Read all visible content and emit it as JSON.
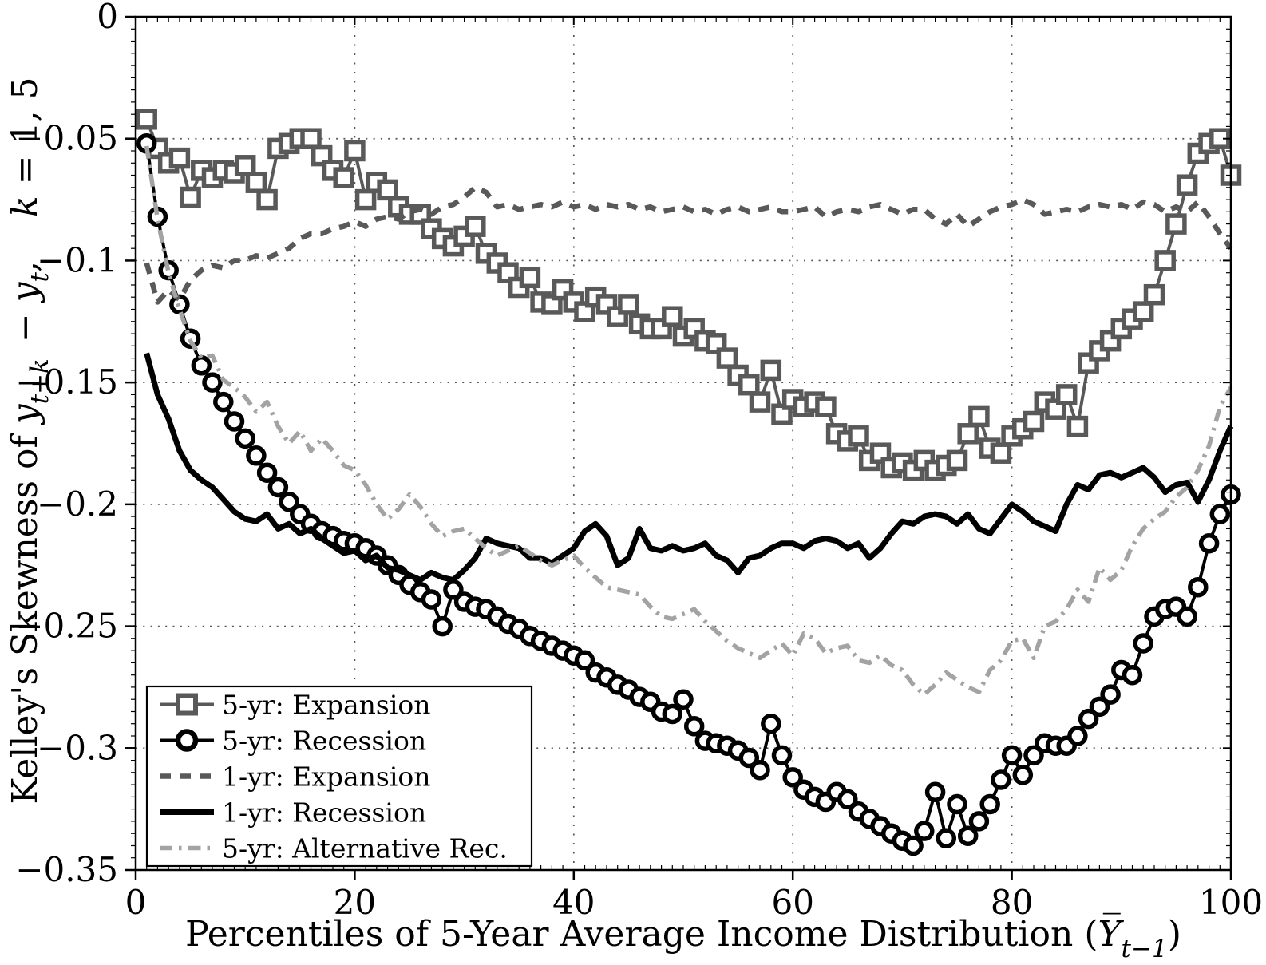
{
  "figure": {
    "background": "#ffffff",
    "axis_color": "#000000",
    "grid_color": "#555555"
  },
  "chart_data": {
    "type": "line",
    "title": "",
    "xlabel_parts": [
      {
        "t": "Percentiles of 5-Year Average Income Distribution ("
      },
      {
        "t": "Y̅",
        "italic": true
      },
      {
        "t": "t−1",
        "italic": true,
        "sub": true
      },
      {
        "t": ")"
      }
    ],
    "ylabel_parts": [
      {
        "t": "Kelley's Skewness of "
      },
      {
        "t": "y",
        "italic": true
      },
      {
        "t": "t+k",
        "italic": true,
        "sub": true
      },
      {
        "t": " − ",
        "dx": 6
      },
      {
        "t": "y",
        "italic": true
      },
      {
        "t": "t",
        "italic": true,
        "sub": true
      },
      {
        "t": ","
      },
      {
        "t": "k",
        "italic": true,
        "dx": 55
      },
      {
        "t": " = 1, 5"
      }
    ],
    "xlim": [
      0,
      100
    ],
    "ylim": [
      -0.35,
      0
    ],
    "xticks": [
      0,
      20,
      40,
      60,
      80,
      100
    ],
    "xtick_labels": [
      "0",
      "20",
      "40",
      "60",
      "80",
      "100"
    ],
    "yticks": [
      0,
      -0.05,
      -0.1,
      -0.15,
      -0.2,
      -0.25,
      -0.3,
      -0.35
    ],
    "ytick_labels": [
      "0",
      "−0.05",
      "−0.1",
      "−0.15",
      "−0.2",
      "−0.25",
      "−0.3",
      "−0.35"
    ],
    "x_minor_step": 1,
    "y_minor_step": 0.005,
    "grid": true,
    "legend_position": "southwest",
    "x_start": 1,
    "series": [
      {
        "name": "5-yr: Expansion",
        "color": "#595959",
        "line": "solid",
        "marker": "square",
        "values": [
          -0.042,
          -0.054,
          -0.06,
          -0.058,
          -0.074,
          -0.063,
          -0.066,
          -0.063,
          -0.064,
          -0.061,
          -0.068,
          -0.075,
          -0.054,
          -0.052,
          -0.05,
          -0.05,
          -0.057,
          -0.063,
          -0.066,
          -0.055,
          -0.075,
          -0.068,
          -0.071,
          -0.078,
          -0.081,
          -0.081,
          -0.087,
          -0.091,
          -0.094,
          -0.09,
          -0.086,
          -0.097,
          -0.101,
          -0.105,
          -0.111,
          -0.107,
          -0.117,
          -0.118,
          -0.112,
          -0.117,
          -0.121,
          -0.115,
          -0.118,
          -0.123,
          -0.118,
          -0.126,
          -0.128,
          -0.128,
          -0.123,
          -0.131,
          -0.128,
          -0.133,
          -0.134,
          -0.14,
          -0.147,
          -0.151,
          -0.158,
          -0.145,
          -0.163,
          -0.157,
          -0.16,
          -0.158,
          -0.16,
          -0.171,
          -0.174,
          -0.172,
          -0.182,
          -0.179,
          -0.185,
          -0.183,
          -0.186,
          -0.182,
          -0.186,
          -0.184,
          -0.182,
          -0.171,
          -0.164,
          -0.177,
          -0.179,
          -0.172,
          -0.169,
          -0.166,
          -0.158,
          -0.161,
          -0.155,
          -0.168,
          -0.142,
          -0.137,
          -0.133,
          -0.128,
          -0.124,
          -0.121,
          -0.114,
          -0.1,
          -0.085,
          -0.069,
          -0.056,
          -0.052,
          -0.05,
          -0.065
        ]
      },
      {
        "name": "5-yr: Recession",
        "color": "#000000",
        "line": "solid",
        "marker": "circle",
        "values": [
          -0.052,
          -0.082,
          -0.104,
          -0.118,
          -0.132,
          -0.143,
          -0.15,
          -0.158,
          -0.166,
          -0.173,
          -0.18,
          -0.187,
          -0.193,
          -0.199,
          -0.204,
          -0.208,
          -0.211,
          -0.213,
          -0.215,
          -0.216,
          -0.218,
          -0.221,
          -0.225,
          -0.229,
          -0.233,
          -0.236,
          -0.239,
          -0.25,
          -0.235,
          -0.24,
          -0.242,
          -0.243,
          -0.246,
          -0.249,
          -0.251,
          -0.254,
          -0.256,
          -0.258,
          -0.26,
          -0.262,
          -0.264,
          -0.269,
          -0.271,
          -0.274,
          -0.276,
          -0.279,
          -0.281,
          -0.285,
          -0.286,
          -0.28,
          -0.291,
          -0.297,
          -0.298,
          -0.299,
          -0.301,
          -0.304,
          -0.309,
          -0.29,
          -0.303,
          -0.312,
          -0.317,
          -0.32,
          -0.322,
          -0.318,
          -0.321,
          -0.326,
          -0.329,
          -0.332,
          -0.335,
          -0.338,
          -0.34,
          -0.334,
          -0.318,
          -0.337,
          -0.323,
          -0.336,
          -0.33,
          -0.323,
          -0.313,
          -0.303,
          -0.311,
          -0.303,
          -0.298,
          -0.299,
          -0.299,
          -0.295,
          -0.288,
          -0.283,
          -0.278,
          -0.268,
          -0.27,
          -0.257,
          -0.246,
          -0.243,
          -0.242,
          -0.246,
          -0.234,
          -0.216,
          -0.204,
          -0.196
        ]
      },
      {
        "name": "1-yr: Expansion",
        "color": "#595959",
        "line": "dashed",
        "marker": null,
        "values": [
          -0.101,
          -0.117,
          -0.112,
          -0.116,
          -0.108,
          -0.104,
          -0.102,
          -0.103,
          -0.1,
          -0.1,
          -0.098,
          -0.099,
          -0.097,
          -0.095,
          -0.091,
          -0.089,
          -0.089,
          -0.087,
          -0.086,
          -0.084,
          -0.086,
          -0.083,
          -0.082,
          -0.083,
          -0.08,
          -0.079,
          -0.081,
          -0.078,
          -0.077,
          -0.074,
          -0.07,
          -0.072,
          -0.078,
          -0.077,
          -0.079,
          -0.078,
          -0.077,
          -0.078,
          -0.076,
          -0.078,
          -0.077,
          -0.079,
          -0.077,
          -0.078,
          -0.077,
          -0.079,
          -0.078,
          -0.08,
          -0.079,
          -0.078,
          -0.08,
          -0.079,
          -0.081,
          -0.079,
          -0.078,
          -0.08,
          -0.079,
          -0.078,
          -0.08,
          -0.08,
          -0.079,
          -0.078,
          -0.082,
          -0.08,
          -0.079,
          -0.08,
          -0.078,
          -0.077,
          -0.079,
          -0.081,
          -0.079,
          -0.079,
          -0.083,
          -0.085,
          -0.081,
          -0.086,
          -0.083,
          -0.08,
          -0.078,
          -0.077,
          -0.075,
          -0.077,
          -0.081,
          -0.08,
          -0.079,
          -0.08,
          -0.078,
          -0.077,
          -0.078,
          -0.077,
          -0.079,
          -0.076,
          -0.077,
          -0.08,
          -0.078,
          -0.08,
          -0.076,
          -0.082,
          -0.089,
          -0.095
        ]
      },
      {
        "name": "1-yr: Recession",
        "color": "#000000",
        "line": "solid-thick",
        "marker": null,
        "values": [
          -0.138,
          -0.155,
          -0.165,
          -0.178,
          -0.186,
          -0.19,
          -0.193,
          -0.198,
          -0.203,
          -0.206,
          -0.207,
          -0.204,
          -0.21,
          -0.208,
          -0.212,
          -0.21,
          -0.214,
          -0.217,
          -0.22,
          -0.219,
          -0.223,
          -0.221,
          -0.226,
          -0.227,
          -0.229,
          -0.231,
          -0.228,
          -0.23,
          -0.231,
          -0.227,
          -0.222,
          -0.214,
          -0.216,
          -0.217,
          -0.218,
          -0.222,
          -0.222,
          -0.224,
          -0.221,
          -0.218,
          -0.211,
          -0.208,
          -0.213,
          -0.225,
          -0.222,
          -0.21,
          -0.218,
          -0.219,
          -0.217,
          -0.219,
          -0.218,
          -0.216,
          -0.221,
          -0.223,
          -0.228,
          -0.222,
          -0.221,
          -0.218,
          -0.216,
          -0.216,
          -0.218,
          -0.215,
          -0.214,
          -0.215,
          -0.218,
          -0.216,
          -0.222,
          -0.218,
          -0.212,
          -0.207,
          -0.208,
          -0.205,
          -0.204,
          -0.205,
          -0.208,
          -0.204,
          -0.21,
          -0.212,
          -0.206,
          -0.2,
          -0.203,
          -0.207,
          -0.209,
          -0.211,
          -0.2,
          -0.192,
          -0.194,
          -0.188,
          -0.187,
          -0.189,
          -0.187,
          -0.185,
          -0.189,
          -0.195,
          -0.192,
          -0.191,
          -0.199,
          -0.19,
          -0.178,
          -0.168
        ]
      },
      {
        "name": "5-yr: Alternative Rec.",
        "color": "#a3a3a3",
        "line": "dashdot",
        "marker": null,
        "values": [
          -0.053,
          -0.083,
          -0.105,
          -0.12,
          -0.133,
          -0.14,
          -0.139,
          -0.149,
          -0.152,
          -0.156,
          -0.162,
          -0.158,
          -0.168,
          -0.175,
          -0.17,
          -0.178,
          -0.173,
          -0.178,
          -0.184,
          -0.186,
          -0.192,
          -0.2,
          -0.206,
          -0.202,
          -0.196,
          -0.201,
          -0.208,
          -0.213,
          -0.211,
          -0.21,
          -0.214,
          -0.218,
          -0.221,
          -0.219,
          -0.217,
          -0.22,
          -0.223,
          -0.225,
          -0.223,
          -0.221,
          -0.226,
          -0.23,
          -0.234,
          -0.235,
          -0.236,
          -0.237,
          -0.242,
          -0.246,
          -0.247,
          -0.245,
          -0.243,
          -0.248,
          -0.252,
          -0.256,
          -0.259,
          -0.261,
          -0.263,
          -0.26,
          -0.257,
          -0.262,
          -0.253,
          -0.255,
          -0.261,
          -0.259,
          -0.258,
          -0.264,
          -0.265,
          -0.262,
          -0.266,
          -0.268,
          -0.274,
          -0.278,
          -0.274,
          -0.269,
          -0.272,
          -0.275,
          -0.277,
          -0.268,
          -0.264,
          -0.256,
          -0.255,
          -0.263,
          -0.25,
          -0.248,
          -0.243,
          -0.235,
          -0.24,
          -0.226,
          -0.231,
          -0.227,
          -0.217,
          -0.21,
          -0.206,
          -0.203,
          -0.197,
          -0.193,
          -0.186,
          -0.176,
          -0.16,
          -0.152
        ]
      }
    ],
    "legend": [
      "5-yr: Expansion",
      "5-yr: Recession",
      "1-yr: Expansion",
      "1-yr: Recession",
      "5-yr: Alternative Rec."
    ]
  }
}
